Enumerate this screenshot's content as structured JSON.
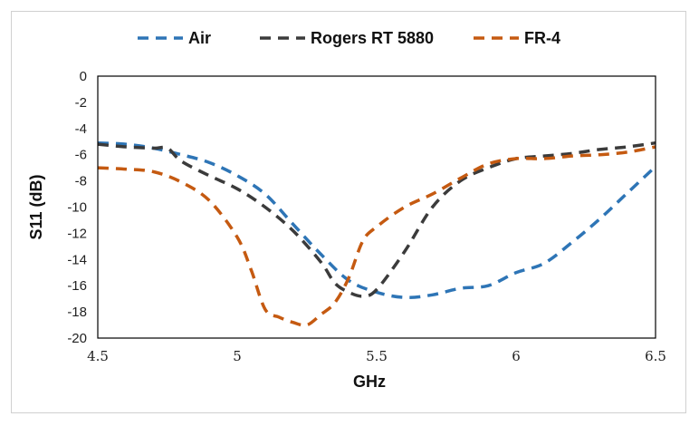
{
  "chart_data": {
    "type": "line",
    "title": "",
    "xlabel": "GHz",
    "ylabel": "S11 (dB)",
    "xlim": [
      4.5,
      6.5
    ],
    "ylim": [
      -20,
      0
    ],
    "xticks": [
      4.5,
      5,
      5.5,
      6,
      6.5
    ],
    "xtick_labels": [
      "4.5",
      "5",
      "5.5",
      "6",
      "6.5"
    ],
    "yticks": [
      0,
      -2,
      -4,
      -6,
      -8,
      -10,
      -12,
      -14,
      -16,
      -18,
      -20
    ],
    "ytick_labels": [
      "0",
      "-2",
      "-4",
      "-6",
      "-8",
      "-10",
      "-12",
      "-14",
      "-16",
      "-18",
      "-20"
    ],
    "grid": false,
    "legend_position": "top",
    "series": [
      {
        "name": "Air",
        "color": "#2E75B6",
        "dash": "dashed",
        "x": [
          4.5,
          4.6,
          4.7,
          4.8,
          4.9,
          5.0,
          5.1,
          5.2,
          5.3,
          5.4,
          5.5,
          5.6,
          5.7,
          5.8,
          5.9,
          6.0,
          6.1,
          6.2,
          6.3,
          6.4,
          6.5
        ],
        "y": [
          -5.1,
          -5.2,
          -5.5,
          -6.0,
          -6.6,
          -7.6,
          -9.0,
          -11.3,
          -13.6,
          -15.6,
          -16.5,
          -16.9,
          -16.7,
          -16.2,
          -16.0,
          -15.0,
          -14.3,
          -12.7,
          -10.9,
          -8.9,
          -6.9
        ]
      },
      {
        "name": "Rogers RT 5880",
        "color": "#3B3B3B",
        "dash": "dashed",
        "x": [
          4.5,
          4.6,
          4.7,
          4.75,
          4.8,
          4.9,
          5.0,
          5.1,
          5.2,
          5.3,
          5.35,
          5.4,
          5.45,
          5.5,
          5.6,
          5.7,
          5.8,
          5.9,
          6.0,
          6.1,
          6.2,
          6.3,
          6.4,
          6.5
        ],
        "y": [
          -5.2,
          -5.4,
          -5.5,
          -5.5,
          -6.5,
          -7.6,
          -8.6,
          -10.0,
          -11.8,
          -14.2,
          -15.8,
          -16.5,
          -16.8,
          -16.3,
          -13.4,
          -10.0,
          -8.0,
          -7.0,
          -6.3,
          -6.1,
          -5.9,
          -5.6,
          -5.4,
          -5.1
        ]
      },
      {
        "name": "FR-4",
        "color": "#C55A11",
        "dash": "dashed",
        "x": [
          4.5,
          4.6,
          4.7,
          4.8,
          4.9,
          5.0,
          5.05,
          5.1,
          5.15,
          5.2,
          5.25,
          5.3,
          5.35,
          5.4,
          5.45,
          5.5,
          5.6,
          5.7,
          5.8,
          5.9,
          6.0,
          6.1,
          6.2,
          6.3,
          6.4,
          6.5
        ],
        "y": [
          -7.0,
          -7.1,
          -7.3,
          -8.1,
          -9.5,
          -12.3,
          -14.8,
          -17.8,
          -18.4,
          -18.8,
          -19.0,
          -18.2,
          -17.3,
          -15.4,
          -12.6,
          -11.5,
          -10.0,
          -9.0,
          -7.8,
          -6.7,
          -6.3,
          -6.3,
          -6.1,
          -6.0,
          -5.8,
          -5.4
        ]
      }
    ]
  }
}
